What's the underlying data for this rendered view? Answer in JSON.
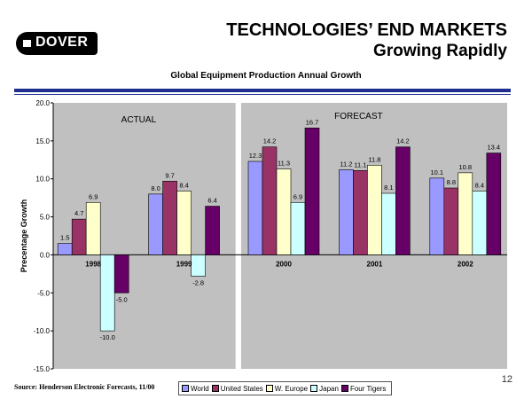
{
  "header": {
    "logo_text": "DOVER",
    "title_line1": "TECHNOLOGIES’ END MARKETS",
    "title_line2": "Growing Rapidly"
  },
  "footer": {
    "source": "Source:  Henderson Electronic Forecasts, 11/00",
    "page_number": "12"
  },
  "chart_data": {
    "type": "bar",
    "title": "Global Equipment Production Annual Growth",
    "xlabel": "",
    "ylabel": "Precentage Growth",
    "ylim": [
      -15,
      20
    ],
    "yticks": [
      -15,
      -10,
      -5,
      0,
      5,
      10,
      15,
      20
    ],
    "ytick_labels": [
      "-15.0",
      "-10.0",
      "-5.0",
      "0.0",
      "5.0",
      "10.0",
      "15.0",
      "20.0"
    ],
    "categories": [
      "1998",
      "1999",
      "2000",
      "2001",
      "2002"
    ],
    "annotations": [
      "ACTUAL",
      "FORECAST"
    ],
    "legend_position": "bottom",
    "series": [
      {
        "name": "World",
        "color": "#9999ff",
        "values": [
          1.5,
          8.0,
          12.3,
          11.2,
          10.1
        ],
        "labels": [
          "1.5",
          "8.0",
          "12.3",
          "11.2",
          "10.1"
        ]
      },
      {
        "name": "United States",
        "color": "#993366",
        "values": [
          4.7,
          9.7,
          14.2,
          11.1,
          8.8
        ],
        "labels": [
          "4.7",
          "9.7",
          "14.2",
          "11.1",
          "8.8"
        ]
      },
      {
        "name": "W. Europe",
        "color": "#ffffcc",
        "values": [
          6.9,
          8.4,
          11.3,
          11.8,
          10.8
        ],
        "labels": [
          "6.9",
          "8.4",
          "11.3",
          "11.8",
          "10.8"
        ]
      },
      {
        "name": "Japan",
        "color": "#ccffff",
        "values": [
          -10.0,
          -2.8,
          6.9,
          8.1,
          8.4
        ],
        "labels": [
          "-10.0",
          "-2.8",
          "6.9",
          "8.1",
          "8.4"
        ]
      },
      {
        "name": "Four Tigers",
        "color": "#660066",
        "values": [
          -5.0,
          6.4,
          16.7,
          14.2,
          13.4
        ],
        "labels": [
          "-5.0",
          "6.4",
          "16.7",
          "14.2",
          "13.4"
        ]
      }
    ],
    "colors": {
      "plot_background": "#c0c0c0",
      "axis": "#000000"
    }
  }
}
